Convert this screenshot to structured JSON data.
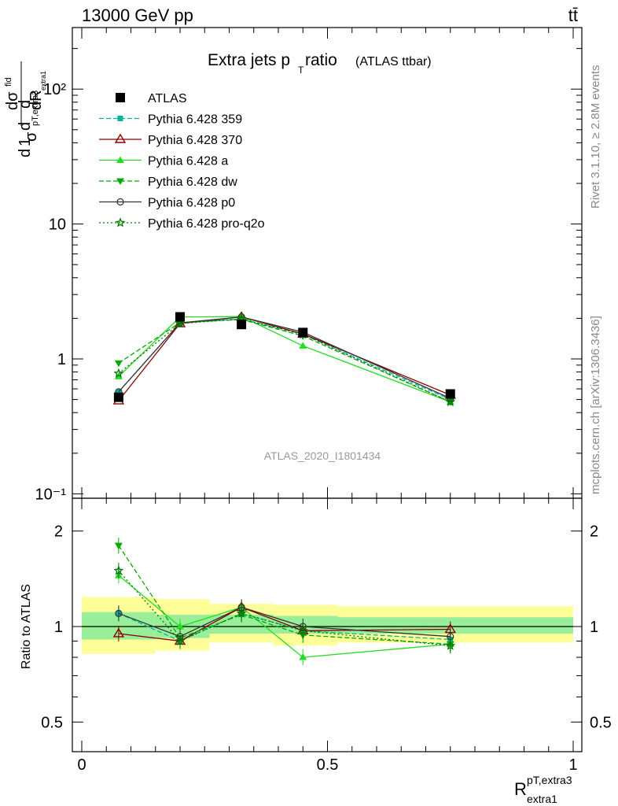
{
  "header": {
    "energy_label": "13000 GeV pp",
    "process_label": "tt̄"
  },
  "side_text": {
    "rivet": "Rivet 3.1.10, ≥ 2.8M events",
    "mcplots": "mcplots.cern.ch [arXiv:1306.3436]"
  },
  "chart_data": [
    {
      "type": "line",
      "title_main": "Extra jets p",
      "title_sub": "T",
      "title_rest": " ratio",
      "title_small": "(ATLAS ttbar)",
      "ylabel": "d σ / dR (1/σ)",
      "yscale": "log",
      "ylim": [
        0.1,
        300
      ],
      "xlim": [
        -0.02,
        1.02
      ],
      "yticks": [
        "10⁻¹",
        "1",
        "10",
        "10²"
      ],
      "watermark": "ATLAS_2020_I1801434",
      "x": [
        0.075,
        0.2,
        0.325,
        0.45,
        0.75
      ],
      "series": [
        {
          "name": "ATLAS",
          "color": "#000000",
          "marker": "square",
          "dash": "",
          "values": [
            0.52,
            2.05,
            1.8,
            1.57,
            0.55
          ]
        },
        {
          "name": "Pythia 6.428 359",
          "color": "#00b3a0",
          "marker": "smallsquare",
          "dash": "6,3",
          "values": [
            0.57,
            1.85,
            1.98,
            1.52,
            0.5
          ]
        },
        {
          "name": "Pythia 6.428 370",
          "color": "#8b0000",
          "marker": "triangle-open",
          "dash": "",
          "values": [
            0.49,
            1.83,
            2.05,
            1.53,
            0.54
          ]
        },
        {
          "name": "Pythia 6.428 a",
          "color": "#22dd22",
          "marker": "triangle",
          "dash": "",
          "values": [
            0.74,
            2.05,
            2.06,
            1.25,
            0.48
          ]
        },
        {
          "name": "Pythia 6.428 dw",
          "color": "#00aa00",
          "marker": "triangle-down",
          "dash": "6,3",
          "values": [
            0.93,
            1.86,
            1.96,
            1.48,
            0.48
          ]
        },
        {
          "name": "Pythia 6.428 p0",
          "color": "#333333",
          "marker": "circle-open",
          "dash": "",
          "values": [
            0.57,
            1.85,
            2.05,
            1.58,
            0.51
          ]
        },
        {
          "name": "Pythia 6.428 pro-q2o",
          "color": "#007700",
          "marker": "star",
          "dash": "2,3",
          "values": [
            0.78,
            1.83,
            1.98,
            1.52,
            0.48
          ]
        }
      ]
    },
    {
      "type": "line",
      "ylabel": "Ratio to ATLAS",
      "yscale": "log",
      "ylim": [
        0.4,
        2.4
      ],
      "xlabel_main": "R",
      "xlabel_sup": "pT,extra3",
      "xlabel_sub": "extra1",
      "xticks": [
        "0",
        "0.5",
        "1"
      ],
      "yticks": [
        "0.5",
        "1",
        "2"
      ],
      "bands": [
        {
          "x": [
            0.0,
            0.15
          ],
          "inner": [
            0.91,
            1.11
          ],
          "outer": [
            0.82,
            1.24
          ]
        },
        {
          "x": [
            0.15,
            0.26
          ],
          "inner": [
            0.92,
            1.09
          ],
          "outer": [
            0.84,
            1.22
          ]
        },
        {
          "x": [
            0.26,
            0.39
          ],
          "inner": [
            0.95,
            1.09
          ],
          "outer": [
            0.89,
            1.18
          ]
        },
        {
          "x": [
            0.39,
            0.52
          ],
          "inner": [
            0.95,
            1.08
          ],
          "outer": [
            0.87,
            1.17
          ]
        },
        {
          "x": [
            0.52,
            1.0
          ],
          "inner": [
            0.95,
            1.07
          ],
          "outer": [
            0.89,
            1.16
          ]
        }
      ],
      "series": [
        {
          "name": "Pythia 6.428 359",
          "color": "#00b3a0",
          "dash": "6,3",
          "values": [
            1.1,
            0.9,
            1.1,
            0.97,
            0.91
          ]
        },
        {
          "name": "Pythia 6.428 370",
          "color": "#8b0000",
          "dash": "",
          "values": [
            0.95,
            0.9,
            1.15,
            0.97,
            0.98
          ]
        },
        {
          "name": "Pythia 6.428 a",
          "color": "#22dd22",
          "dash": "",
          "values": [
            1.45,
            1.0,
            1.15,
            0.8,
            0.88
          ]
        },
        {
          "name": "Pythia 6.428 dw",
          "color": "#00aa00",
          "dash": "6,3",
          "values": [
            1.8,
            0.92,
            1.09,
            0.94,
            0.88
          ]
        },
        {
          "name": "Pythia 6.428 p0",
          "color": "#333333",
          "dash": "",
          "values": [
            1.1,
            0.93,
            1.15,
            1.0,
            0.93
          ]
        },
        {
          "name": "Pythia 6.428 pro-q2o",
          "color": "#007700",
          "dash": "2,3",
          "values": [
            1.5,
            0.9,
            1.1,
            0.97,
            0.87
          ]
        }
      ]
    }
  ]
}
